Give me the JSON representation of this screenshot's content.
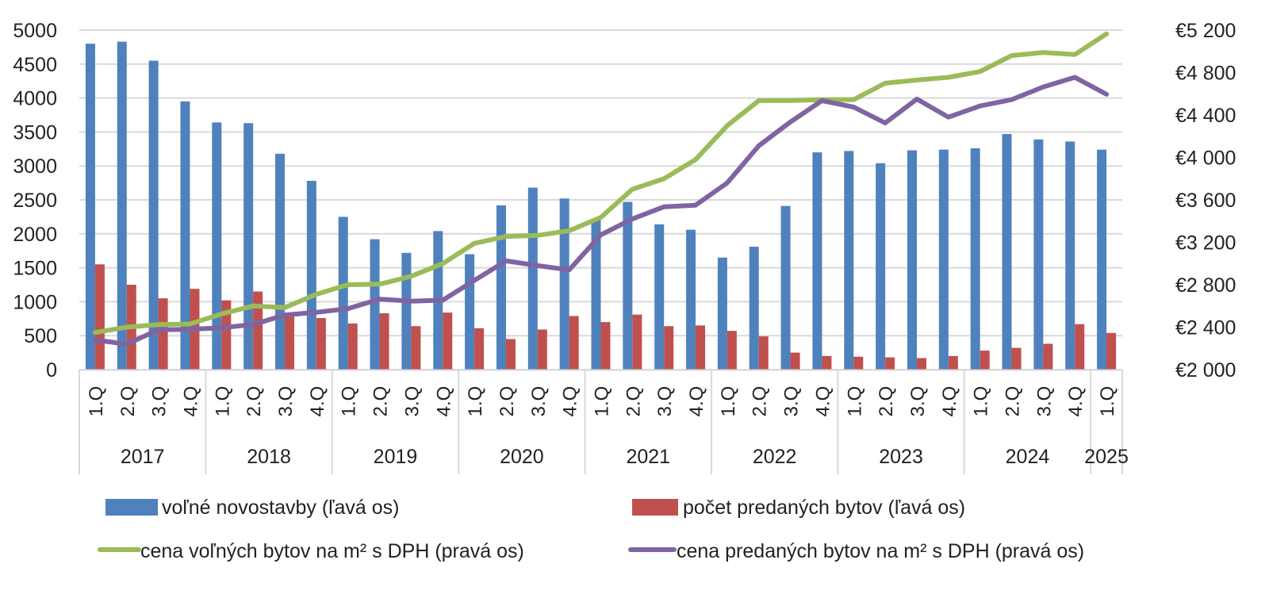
{
  "chart_data": {
    "type": "bar+line",
    "title": "",
    "categories": [
      "1.Q",
      "2.Q",
      "3.Q",
      "4.Q",
      "1.Q",
      "2.Q",
      "3.Q",
      "4.Q",
      "1.Q",
      "2.Q",
      "3.Q",
      "4.Q",
      "1.Q",
      "2.Q",
      "3.Q",
      "4.Q",
      "1.Q",
      "2.Q",
      "3.Q",
      "4.Q",
      "1.Q",
      "2.Q",
      "3.Q",
      "4.Q",
      "1.Q",
      "2.Q",
      "3.Q",
      "4.Q",
      "1.Q",
      "2.Q",
      "3.Q",
      "4.Q",
      "1.Q"
    ],
    "year_groups": [
      {
        "label": "2017",
        "count": 4
      },
      {
        "label": "2018",
        "count": 4
      },
      {
        "label": "2019",
        "count": 4
      },
      {
        "label": "2020",
        "count": 4
      },
      {
        "label": "2021",
        "count": 4
      },
      {
        "label": "2022",
        "count": 4
      },
      {
        "label": "2023",
        "count": 4
      },
      {
        "label": "2024",
        "count": 4
      },
      {
        "label": "2025",
        "count": 1
      }
    ],
    "left_axis": {
      "ylim": [
        0,
        5000
      ],
      "ticks": [
        "0",
        "500",
        "1000",
        "1500",
        "2000",
        "2500",
        "3000",
        "3500",
        "4000",
        "4500",
        "5000"
      ],
      "tick_values": [
        0,
        500,
        1000,
        1500,
        2000,
        2500,
        3000,
        3500,
        4000,
        4500,
        5000
      ]
    },
    "right_axis": {
      "ylim": [
        2000,
        5200
      ],
      "ticks": [
        "€2 000",
        "€2 400",
        "€2 800",
        "€3 200",
        "€3 600",
        "€4 000",
        "€4 400",
        "€4 800",
        "€5 200"
      ],
      "tick_values": [
        2000,
        2400,
        2800,
        3200,
        3600,
        4000,
        4400,
        4800,
        5200
      ]
    },
    "grid": true,
    "legend_position": "bottom",
    "series": [
      {
        "name": "voľné novostavby (ľavá os)",
        "kind": "bar",
        "axis": "left",
        "color": "#4f81bd",
        "values": [
          4800,
          4830,
          4550,
          3950,
          3640,
          3630,
          3180,
          2780,
          2250,
          1920,
          1720,
          2040,
          1700,
          2420,
          2680,
          2520,
          2200,
          2470,
          2140,
          2060,
          1650,
          1810,
          2410,
          3200,
          3220,
          3040,
          3230,
          3240,
          3260,
          3470,
          3390,
          3360,
          3240
        ]
      },
      {
        "name": "počet predaných bytov (ľavá os)",
        "kind": "bar",
        "axis": "left",
        "color": "#c0504d",
        "values": [
          1550,
          1250,
          1050,
          1190,
          1020,
          1150,
          820,
          760,
          680,
          830,
          640,
          840,
          610,
          450,
          590,
          790,
          700,
          810,
          640,
          650,
          570,
          490,
          250,
          200,
          190,
          180,
          170,
          200,
          280,
          320,
          380,
          670,
          540
        ]
      },
      {
        "name": "cena voľných bytov na m² s DPH (pravá os)",
        "kind": "line",
        "axis": "right",
        "color": "#9bbb59",
        "values": [
          2350,
          2400,
          2425,
          2430,
          2525,
          2600,
          2585,
          2710,
          2800,
          2805,
          2880,
          3000,
          3190,
          3255,
          3265,
          3310,
          3435,
          3700,
          3800,
          3980,
          4300,
          4535,
          4535,
          4545,
          4545,
          4700,
          4730,
          4755,
          4810,
          4960,
          4990,
          4970,
          5165
        ]
      },
      {
        "name": "cena predaných bytov na m² s  DPH (pravá os)",
        "kind": "line",
        "axis": "right",
        "color": "#8064a2",
        "values": [
          2280,
          2240,
          2375,
          2380,
          2395,
          2425,
          2515,
          2540,
          2575,
          2665,
          2645,
          2655,
          2840,
          3025,
          2980,
          2940,
          3270,
          3420,
          3535,
          3550,
          3760,
          4110,
          4335,
          4535,
          4475,
          4325,
          4550,
          4380,
          4485,
          4545,
          4665,
          4755,
          4595
        ]
      }
    ]
  }
}
